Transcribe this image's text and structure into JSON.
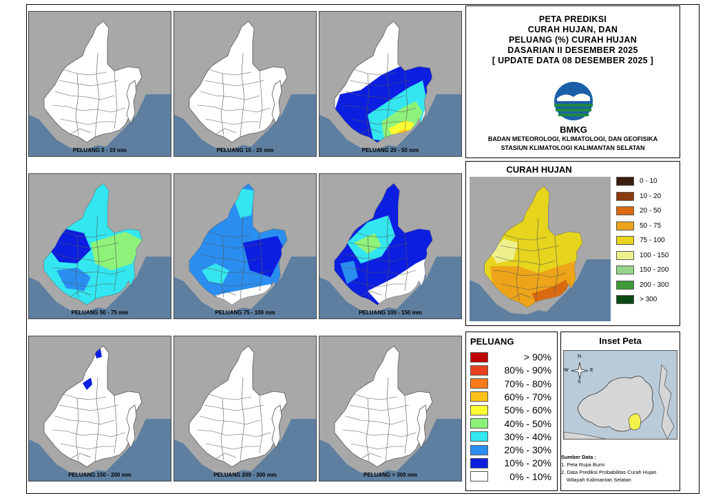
{
  "title": {
    "lines": [
      "PETA PREDIKSI",
      "CURAH HUJAN, DAN",
      "PELUANG (%) CURAH HUJAN",
      "DASARIAN II DESEMBER 2025",
      "[ UPDATE DATA 08 DESEMBER 2025 ]"
    ],
    "logo_text": "BMKG",
    "institution": [
      "BADAN METEOROLOGI, KLIMATOLOGI, DAN GEOFISIKA",
      "STASIUN KLIMATOLOGI KALIMANTAN SELATAN"
    ]
  },
  "maps": [
    {
      "caption": "PELUANG 0 - 10 mm",
      "fill": "none"
    },
    {
      "caption": "PELUANG 10 - 20 mm",
      "fill": "none"
    },
    {
      "caption": "PELUANG 20 - 50 mm",
      "fill": "b"
    },
    {
      "caption": "PELUANG 50 - 75 mm",
      "fill": "c"
    },
    {
      "caption": "PELUANG 75 - 100 mm",
      "fill": "d"
    },
    {
      "caption": "PELUANG 100 - 150 mm",
      "fill": "e"
    },
    {
      "caption": "PELUANG 150 - 200 mm",
      "fill": "f"
    },
    {
      "caption": "PELUANG 200 - 300 mm",
      "fill": "none"
    },
    {
      "caption": "PELUANG > 300 mm",
      "fill": "none"
    }
  ],
  "curah_hujan": {
    "title": "CURAH HUJAN",
    "items": [
      {
        "label": "0 - 10",
        "color": "#3b1d0e"
      },
      {
        "label": "10 - 20",
        "color": "#8b3a0f"
      },
      {
        "label": "20 - 50",
        "color": "#d96a10"
      },
      {
        "label": "50 - 75",
        "color": "#eea419"
      },
      {
        "label": "75 - 100",
        "color": "#e6d41d"
      },
      {
        "label": "100 - 150",
        "color": "#eef08c"
      },
      {
        "label": "150 - 200",
        "color": "#96d48a"
      },
      {
        "label": "200 - 300",
        "color": "#3f9a3a"
      },
      {
        "label": "> 300",
        "color": "#0a4a12"
      }
    ]
  },
  "peluang": {
    "title": "PELUANG",
    "items": [
      {
        "label": "> 90%",
        "color": "#c00000"
      },
      {
        "label": "80% - 90%",
        "color": "#e8401a"
      },
      {
        "label": "70% - 80%",
        "color": "#ff7a1a"
      },
      {
        "label": "60% - 70%",
        "color": "#ffc21a"
      },
      {
        "label": "50% - 60%",
        "color": "#ffff33"
      },
      {
        "label": "40% - 50%",
        "color": "#8ef27a"
      },
      {
        "label": "30% - 40%",
        "color": "#33e6f0"
      },
      {
        "label": "20% - 30%",
        "color": "#2a8ef0"
      },
      {
        "label": "10% - 20%",
        "color": "#0c1fe0"
      },
      {
        "label": "0% - 10%",
        "color": "#ffffff"
      }
    ]
  },
  "inset": {
    "title": "Inset Peta",
    "compass": {
      "n": "N",
      "s": "S",
      "e": "E",
      "w": "W"
    },
    "sumber_title": "Sumber Data :",
    "sumber_items": [
      "1. Peta Rupa Bumi",
      "2. Data Prediksi Probabilitas Curah Hujan",
      "Wilayah Kalimantan Selatan"
    ]
  },
  "colors": {
    "sea": "#5e7fa0",
    "land_outside": "#a8a8a8",
    "province": "#ffffff"
  }
}
